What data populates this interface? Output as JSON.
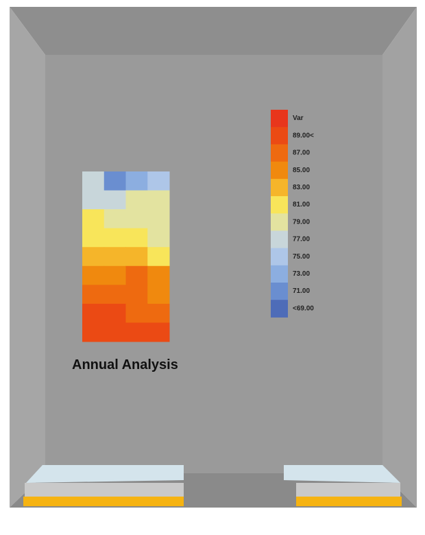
{
  "chart_data": {
    "type": "heatmap",
    "title": "Annual Analysis",
    "z": [
      [
        77,
        71,
        73,
        75
      ],
      [
        77,
        77,
        79,
        79
      ],
      [
        81,
        79,
        79,
        79
      ],
      [
        81,
        81,
        81,
        79
      ],
      [
        83,
        83,
        83,
        81
      ],
      [
        85,
        85,
        87,
        85
      ],
      [
        87,
        87,
        87,
        85
      ],
      [
        89,
        89,
        87,
        87
      ],
      [
        89,
        89,
        89,
        89
      ]
    ],
    "legend": [
      {
        "label": "Var",
        "color": "#e8361c"
      },
      {
        "value": 89,
        "label": "89.00<",
        "color": "#eb4a14"
      },
      {
        "value": 87,
        "label": "87.00",
        "color": "#ee6a10"
      },
      {
        "value": 85,
        "label": "85.00",
        "color": "#f0890e"
      },
      {
        "value": 83,
        "label": "83.00",
        "color": "#f5b52a"
      },
      {
        "value": 81,
        "label": "81.00",
        "color": "#f8e55a"
      },
      {
        "value": 79,
        "label": "79.00",
        "color": "#e3e3a0"
      },
      {
        "value": 77,
        "label": "77.00",
        "color": "#c8d6da"
      },
      {
        "value": 75,
        "label": "75.00",
        "color": "#aec6e8"
      },
      {
        "value": 73,
        "label": "73.00",
        "color": "#8caee0"
      },
      {
        "value": 71,
        "label": "71.00",
        "color": "#6a8ed0"
      },
      {
        "value": 69,
        "label": "<69.00",
        "color": "#4e6cb8"
      }
    ]
  }
}
